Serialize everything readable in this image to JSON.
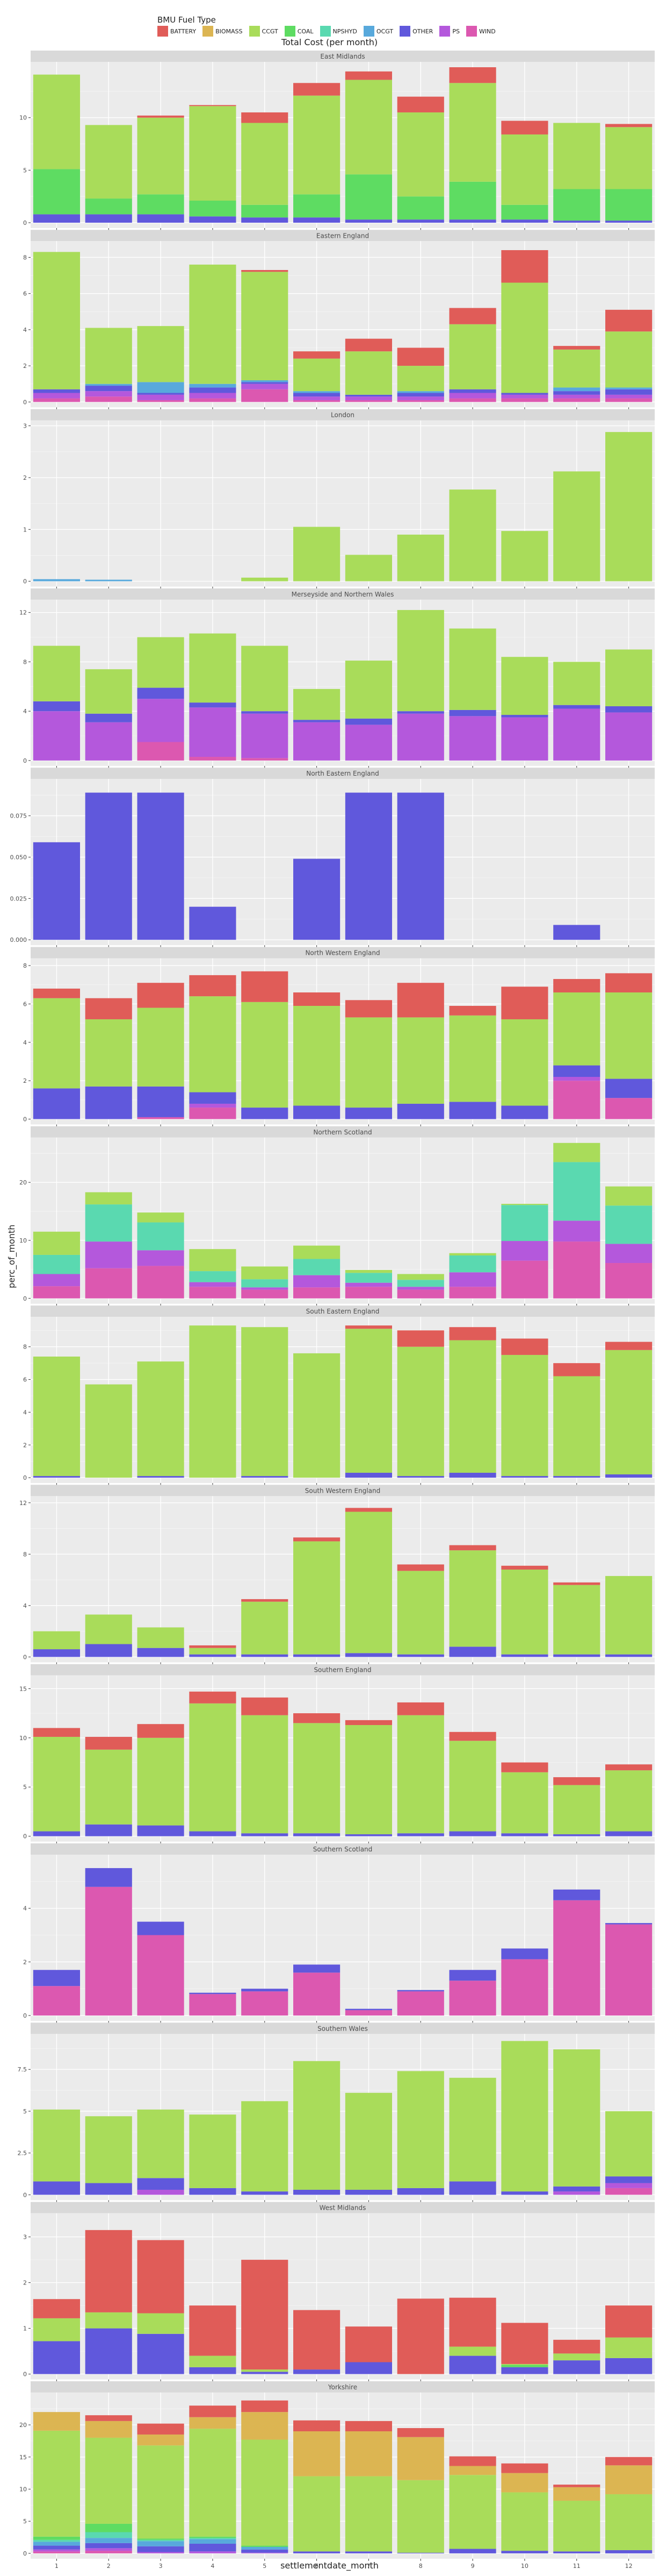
{
  "legend": {
    "title": "BMU Fuel Type",
    "items": [
      {
        "name": "BATTERY",
        "color": "#e05c58"
      },
      {
        "name": "BIOMASS",
        "color": "#dcb552"
      },
      {
        "name": "CCGT",
        "color": "#a9dc5a"
      },
      {
        "name": "COAL",
        "color": "#5edc62"
      },
      {
        "name": "NPSHYD",
        "color": "#5ad9b0"
      },
      {
        "name": "OCGT",
        "color": "#58a9dc"
      },
      {
        "name": "OTHER",
        "color": "#6058dc"
      },
      {
        "name": "PS",
        "color": "#b458dc"
      },
      {
        "name": "WIND",
        "color": "#dc58b0"
      }
    ]
  },
  "title": "Total Cost (per month)",
  "xlabel": "settlementdate_month",
  "ylabel": "perc_of_month",
  "chart_data": {
    "type": "bar",
    "stacked": true,
    "faceted": true,
    "categories": [
      "1",
      "2",
      "3",
      "4",
      "5",
      "6",
      "7",
      "8",
      "9",
      "10",
      "11",
      "12"
    ],
    "stack_order": [
      "WIND",
      "PS",
      "OTHER",
      "OCGT",
      "NPSHYD",
      "COAL",
      "CCGT",
      "BIOMASS",
      "BATTERY"
    ],
    "panels": [
      {
        "name": "East Midlands",
        "yticks": [
          0,
          5,
          10
        ],
        "ytick_labels": [
          "0",
          "5",
          "10"
        ],
        "ymax": 14.8,
        "series": {
          "OTHER": [
            0.8,
            0.8,
            0.8,
            0.6,
            0.5,
            0.5,
            0.3,
            0.3,
            0.3,
            0.3,
            0.2,
            0.2
          ],
          "COAL": [
            4.3,
            1.5,
            1.9,
            1.5,
            1.2,
            2.2,
            4.3,
            2.2,
            3.6,
            1.4,
            3,
            3
          ],
          "CCGT": [
            9,
            7,
            7.3,
            9,
            7.8,
            9.4,
            9,
            8,
            9.4,
            6.7,
            6.3,
            5.9
          ],
          "BATTERY": [
            0,
            0,
            0.2,
            0.1,
            1,
            1.2,
            0.8,
            1.5,
            1.5,
            1.3,
            0,
            0.3
          ]
        }
      },
      {
        "name": "Eastern England",
        "yticks": [
          0,
          2,
          4,
          6,
          8
        ],
        "ytick_labels": [
          "0",
          "2",
          "4",
          "6",
          "8"
        ],
        "ymax": 8.6,
        "series": {
          "WIND": [
            0.2,
            0.3,
            0.1,
            0.2,
            0.7,
            0.1,
            0.1,
            0.1,
            0.2,
            0.2,
            0.2,
            0.2
          ],
          "PS": [
            0.3,
            0.3,
            0.3,
            0.3,
            0.3,
            0.2,
            0.2,
            0.2,
            0.3,
            0.2,
            0.2,
            0.2
          ],
          "OTHER": [
            0.2,
            0.3,
            0.1,
            0.3,
            0.1,
            0.2,
            0.1,
            0.2,
            0.2,
            0.1,
            0.2,
            0.3
          ],
          "OCGT": [
            0,
            0.1,
            0.6,
            0.2,
            0.1,
            0.1,
            0,
            0.1,
            0,
            0,
            0.2,
            0.1
          ],
          "CCGT": [
            7.6,
            3.1,
            3.1,
            6.6,
            6,
            1.8,
            2.4,
            1.4,
            3.6,
            6.1,
            2.1,
            3.1
          ],
          "BATTERY": [
            0,
            0,
            0,
            0,
            0.1,
            0.4,
            0.7,
            1,
            0.9,
            1.8,
            0.2,
            1.2
          ]
        }
      },
      {
        "name": "London",
        "yticks": [
          0,
          1,
          2,
          3
        ],
        "ytick_labels": [
          "0",
          "1",
          "2",
          "3"
        ],
        "ymax": 3,
        "series": {
          "OCGT": [
            0.04,
            0.03,
            0,
            0,
            0,
            0,
            0,
            0,
            0,
            0,
            0,
            0
          ],
          "CCGT": [
            0,
            0,
            0,
            0,
            0.07,
            1.05,
            0.51,
            0.9,
            1.77,
            0.97,
            2.12,
            2.88
          ]
        }
      },
      {
        "name": "Merseyside and Northern Wales",
        "yticks": [
          0,
          4,
          8,
          12
        ],
        "ytick_labels": [
          "0",
          "4",
          "8",
          "12"
        ],
        "ymax": 12.6,
        "series": {
          "WIND": [
            0,
            0,
            1.5,
            0.3,
            0.2,
            0,
            0,
            0,
            0,
            0,
            0,
            0
          ],
          "PS": [
            4,
            3.1,
            3.5,
            4,
            3.6,
            3.1,
            2.9,
            3.8,
            3.6,
            3.5,
            4.2,
            3.9
          ],
          "OTHER": [
            0.8,
            0.7,
            0.9,
            0.4,
            0.2,
            0.2,
            0.5,
            0.2,
            0.5,
            0.2,
            0.3,
            0.5
          ],
          "CCGT": [
            4.5,
            3.6,
            4.1,
            5.6,
            5.3,
            2.5,
            4.7,
            8.2,
            6.6,
            4.7,
            3.5,
            4.6
          ]
        }
      },
      {
        "name": "North Eastern England",
        "yticks": [
          0,
          0.025,
          0.05,
          0.075
        ],
        "ytick_labels": [
          "0.000",
          "0.025",
          "0.050",
          "0.075"
        ],
        "ymax": 0.094,
        "series": {
          "OTHER": [
            0.059,
            0.089,
            0.089,
            0.02,
            0,
            0.049,
            0.089,
            0.089,
            0,
            0,
            0.009,
            0
          ]
        }
      },
      {
        "name": "North Western England",
        "yticks": [
          0,
          2,
          4,
          6,
          8
        ],
        "ytick_labels": [
          "0",
          "2",
          "4",
          "6",
          "8"
        ],
        "ymax": 8.1,
        "series": {
          "WIND": [
            0,
            0,
            0.1,
            0.6,
            0,
            0,
            0,
            0,
            0,
            0,
            2,
            1.1
          ],
          "PS": [
            0,
            0,
            0,
            0.2,
            0,
            0,
            0,
            0,
            0,
            0,
            0.2,
            0
          ],
          "OTHER": [
            1.6,
            1.7,
            1.6,
            0.6,
            0.6,
            0.7,
            0.6,
            0.8,
            0.9,
            0.7,
            0.6,
            1
          ],
          "CCGT": [
            4.7,
            3.5,
            4.1,
            5,
            5.5,
            5.2,
            4.7,
            4.5,
            4.5,
            4.5,
            3.8,
            4.5
          ],
          "BATTERY": [
            0.5,
            1.1,
            1.3,
            1.1,
            1.6,
            0.7,
            0.9,
            1.8,
            0.5,
            1.7,
            0.7,
            1
          ]
        }
      },
      {
        "name": "Northern Scotland",
        "yticks": [
          0,
          10,
          20
        ],
        "ytick_labels": [
          "0",
          "10",
          "20"
        ],
        "ymax": 26.8,
        "series": {
          "WIND": [
            2.1,
            5.2,
            5.6,
            2,
            1.5,
            1.9,
            2,
            1.5,
            2,
            6.5,
            9.8,
            6.1
          ],
          "PS": [
            2.1,
            4.6,
            2.7,
            0.8,
            0.4,
            2.1,
            0.7,
            0.5,
            2.5,
            3.4,
            3.6,
            3.3
          ],
          "OTHER": [
            0,
            0,
            0,
            0,
            0,
            0,
            0,
            0,
            0,
            0,
            0,
            0
          ],
          "NPSHYD": [
            3.3,
            6.4,
            4.8,
            1.9,
            1.4,
            2.8,
            1.7,
            1.2,
            2.9,
            6.2,
            10.1,
            6.6
          ],
          "CCGT": [
            4,
            2.1,
            1.7,
            3.8,
            2.2,
            2.3,
            0.5,
            1,
            0.4,
            0.2,
            3.3,
            3.3
          ]
        }
      },
      {
        "name": "South Eastern England",
        "yticks": [
          0,
          2,
          4,
          6,
          8
        ],
        "ytick_labels": [
          "0",
          "2",
          "4",
          "6",
          "8"
        ],
        "ymax": 9.5,
        "series": {
          "OTHER": [
            0.1,
            0,
            0.1,
            0,
            0.1,
            0,
            0.3,
            0.1,
            0.3,
            0.1,
            0.1,
            0.2
          ],
          "CCGT": [
            7.3,
            5.7,
            7,
            9.3,
            9.1,
            7.6,
            8.8,
            7.9,
            8.1,
            7.4,
            6.1,
            7.6
          ],
          "BATTERY": [
            0,
            0,
            0,
            0,
            0,
            0,
            0.2,
            1,
            0.8,
            1,
            0.8,
            0.5
          ]
        }
      },
      {
        "name": "South Western England",
        "yticks": [
          0,
          4,
          8,
          12
        ],
        "ytick_labels": [
          "0",
          "4",
          "8",
          "12"
        ],
        "ymax": 12.1,
        "series": {
          "OTHER": [
            0.6,
            1,
            0.7,
            0.2,
            0.2,
            0.2,
            0.3,
            0.2,
            0.8,
            0.2,
            0.2,
            0.2
          ],
          "CCGT": [
            1.4,
            2.3,
            1.6,
            0.5,
            4.1,
            8.8,
            11,
            6.5,
            7.5,
            6.6,
            5.4,
            6.1
          ],
          "BATTERY": [
            0,
            0,
            0,
            0.2,
            0.2,
            0.3,
            0.3,
            0.5,
            0.4,
            0.3,
            0.2,
            0
          ]
        }
      },
      {
        "name": "Southern England",
        "yticks": [
          0,
          5,
          10,
          15
        ],
        "ytick_labels": [
          "0",
          "5",
          "10",
          "15"
        ],
        "ymax": 15.8,
        "series": {
          "OTHER": [
            0.5,
            1.2,
            1.1,
            0.5,
            0.3,
            0.3,
            0.2,
            0.3,
            0.5,
            0.3,
            0.2,
            0.5
          ],
          "CCGT": [
            9.6,
            7.6,
            8.9,
            13,
            12,
            11.2,
            11.1,
            12,
            9.2,
            6.2,
            5,
            6.2
          ],
          "BATTERY": [
            0.9,
            1.3,
            1.4,
            1.2,
            1.8,
            1,
            0.5,
            1.3,
            0.9,
            1,
            0.8,
            0.6
          ]
        }
      },
      {
        "name": "Southern Scotland",
        "yticks": [
          0,
          2,
          4
        ],
        "ytick_labels": [
          "0",
          "2",
          "4"
        ],
        "ymax": 5.8,
        "series": {
          "WIND": [
            1.1,
            4.8,
            3,
            0.8,
            0.9,
            1.6,
            0.2,
            0.9,
            1.3,
            2.1,
            4.3,
            3.4
          ],
          "OTHER": [
            0.6,
            0.7,
            0.5,
            0.05,
            0.1,
            0.3,
            0.05,
            0.05,
            0.4,
            0.4,
            0.4,
            0.05
          ]
        }
      },
      {
        "name": "Southern Wales",
        "yticks": [
          0,
          2.5,
          5,
          7.5
        ],
        "ytick_labels": [
          "0",
          "2.5",
          "5",
          "7.5"
        ],
        "ymax": 9.3,
        "series": {
          "WIND": [
            0,
            0,
            0,
            0,
            0,
            0,
            0,
            0,
            0,
            0,
            0,
            0.4
          ],
          "PS": [
            0,
            0,
            0.3,
            0,
            0,
            0,
            0,
            0,
            0,
            0,
            0.2,
            0.3
          ],
          "OTHER": [
            0.8,
            0.7,
            0.7,
            0.4,
            0.2,
            0.3,
            0.3,
            0.4,
            0.8,
            0.2,
            0.3,
            0.4
          ],
          "CCGT": [
            4.3,
            4,
            4.1,
            4.4,
            5.4,
            7.7,
            5.8,
            7,
            6.2,
            9,
            8.2,
            3.9
          ]
        }
      },
      {
        "name": "West Midlands",
        "yticks": [
          0,
          1,
          2,
          3
        ],
        "ytick_labels": [
          "0",
          "1",
          "2",
          "3"
        ],
        "ymax": 3.4,
        "series": {
          "OTHER": [
            0.72,
            1,
            0.88,
            0.15,
            0.05,
            0.1,
            0.26,
            0,
            0.4,
            0.15,
            0.3,
            0.35
          ],
          "COAL": [
            0,
            0,
            0,
            0,
            0,
            0,
            0,
            0,
            0,
            0.05,
            0,
            0
          ],
          "CCGT": [
            0.5,
            0.35,
            0.45,
            0.25,
            0.05,
            0,
            0,
            0,
            0.2,
            0.02,
            0.15,
            0.45
          ],
          "BATTERY": [
            0.42,
            1.8,
            1.6,
            1.1,
            2.4,
            1.3,
            0.78,
            1.65,
            1.07,
            0.9,
            0.3,
            0.7
          ]
        }
      },
      {
        "name": "Yorkshire",
        "yticks": [
          0,
          5,
          10,
          15,
          20
        ],
        "ytick_labels": [
          "0",
          "5",
          "10",
          "15",
          "20"
        ],
        "ymax": 24.2,
        "series": {
          "WIND": [
            0.3,
            0.4,
            0,
            0,
            0,
            0,
            0,
            0,
            0,
            0,
            0,
            0
          ],
          "PS": [
            0.3,
            0.4,
            0.2,
            0.3,
            0.1,
            0,
            0,
            0,
            0,
            0,
            0,
            0
          ],
          "OTHER": [
            0.6,
            0.8,
            0.9,
            1.2,
            0.5,
            0.3,
            0.3,
            0.1,
            0.7,
            0.4,
            0.3,
            0.5
          ],
          "OCGT": [
            0.6,
            0.8,
            0.8,
            0.7,
            0.4,
            0,
            0,
            0,
            0,
            0,
            0,
            0
          ],
          "NPSHYD": [
            0.3,
            0.9,
            0.2,
            0.2,
            0,
            0,
            0,
            0,
            0,
            0,
            0,
            0
          ],
          "COAL": [
            0.5,
            1.3,
            0.2,
            0.2,
            0.2,
            0,
            0,
            0,
            0,
            0,
            0,
            0
          ],
          "CCGT": [
            16.5,
            13.4,
            14.5,
            16.8,
            16.5,
            11.7,
            11.7,
            11.3,
            11.5,
            9.1,
            7.9,
            8.7
          ],
          "BIOMASS": [
            2.9,
            2.6,
            1.7,
            1.8,
            4.3,
            7,
            7,
            6.7,
            1.4,
            3,
            2.1,
            4.5
          ],
          "BATTERY": [
            0,
            0.9,
            1.7,
            1.8,
            1.8,
            1.7,
            1.6,
            1.4,
            1.5,
            1.5,
            0.4,
            1.3
          ]
        }
      }
    ]
  }
}
